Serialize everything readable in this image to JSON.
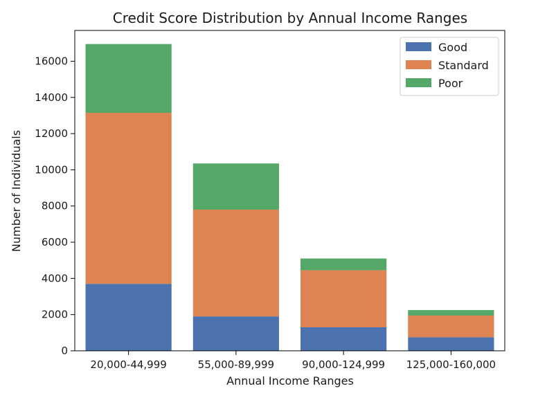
{
  "chart_data": {
    "type": "bar",
    "stacked": true,
    "title": "Credit Score Distribution by Annual Income Ranges",
    "xlabel": "Annual Income Ranges",
    "ylabel": "Number of Individuals",
    "categories": [
      "20,000-44,999",
      "55,000-89,999",
      "90,000-124,999",
      "125,000-160,000"
    ],
    "series": [
      {
        "name": "Good",
        "color": "#4c72b0",
        "values": [
          3700,
          1900,
          1300,
          750
        ]
      },
      {
        "name": "Standard",
        "color": "#dd8452",
        "values": [
          9450,
          5900,
          3150,
          1200
        ]
      },
      {
        "name": "Poor",
        "color": "#55a868",
        "values": [
          3800,
          2550,
          650,
          300
        ]
      }
    ],
    "ylim": [
      0,
      17700
    ],
    "yticks": [
      0,
      2000,
      4000,
      6000,
      8000,
      10000,
      12000,
      14000,
      16000
    ],
    "legend": "top-right",
    "grid": false
  }
}
